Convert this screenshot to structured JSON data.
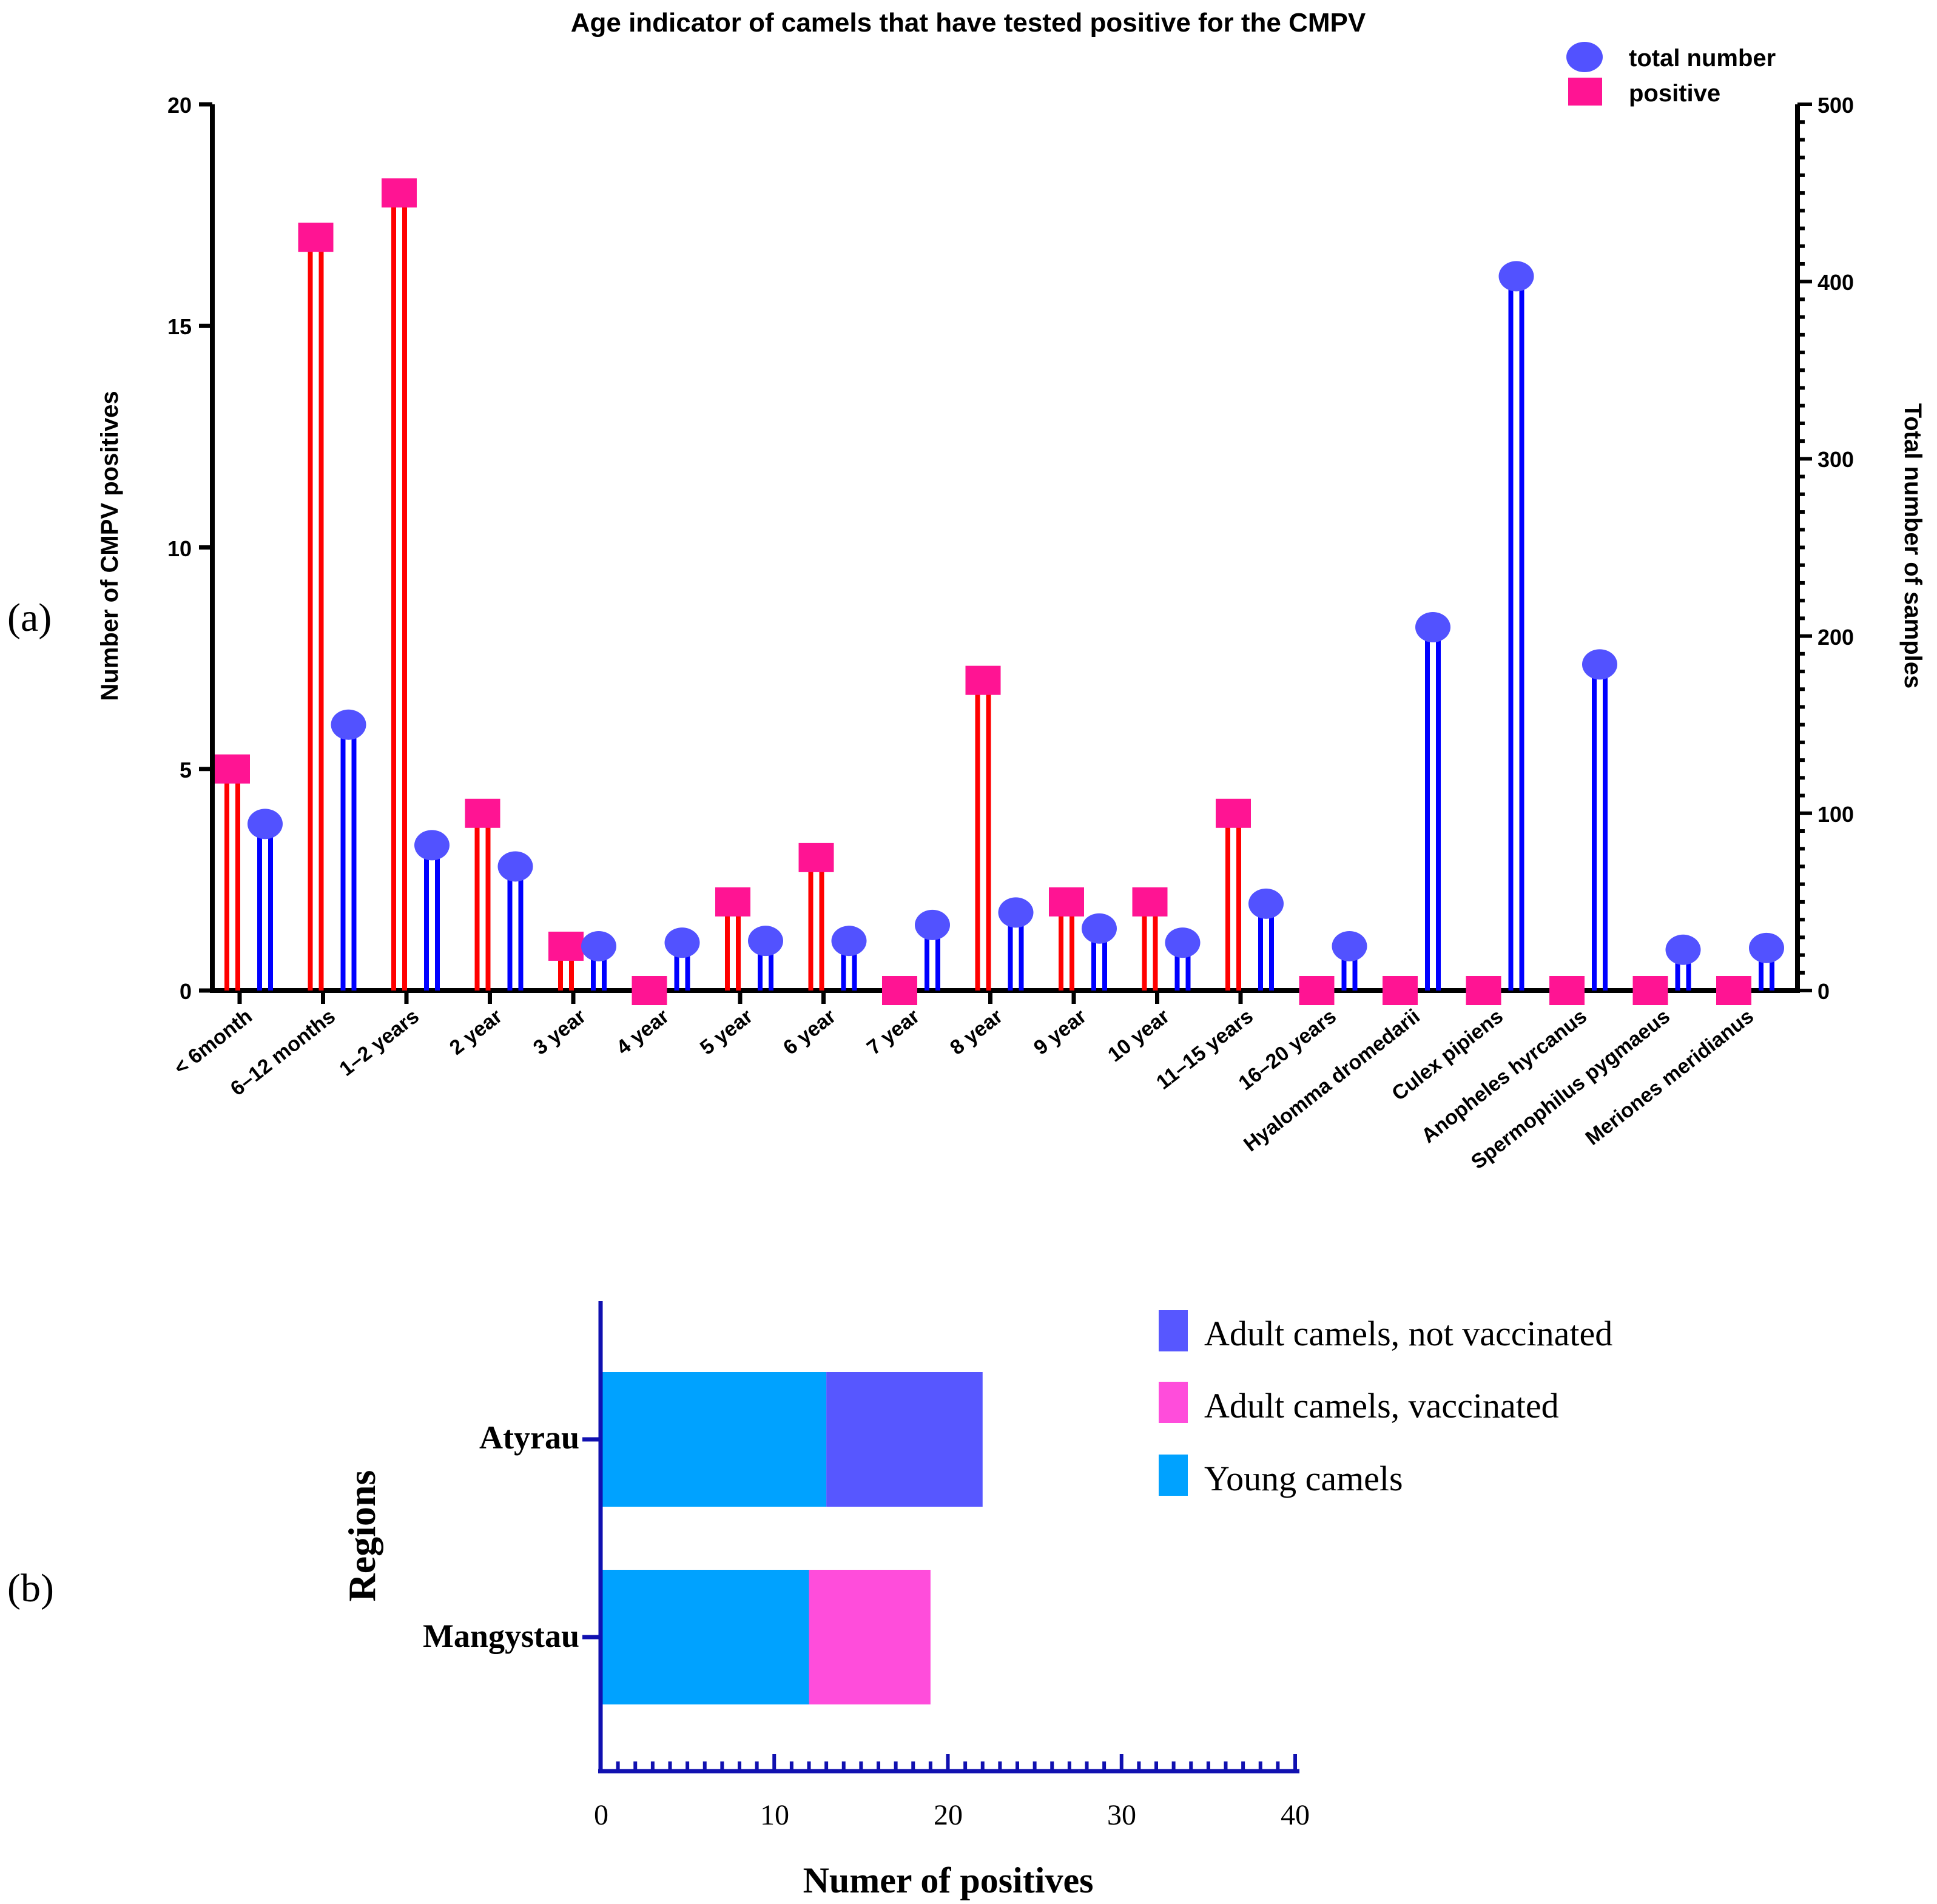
{
  "panel_labels": {
    "a": "(a)",
    "b": "(b)"
  },
  "chart_data": [
    {
      "type": "bar",
      "variant": "lollipop-dual-axis",
      "title": "Age indicator of camels that have tested positive for the CMPV",
      "xlabel": "",
      "ylabel": "Number of CMPV positives",
      "y2label": "Total number of samples",
      "ylim": [
        0,
        20
      ],
      "y2lim": [
        0,
        500
      ],
      "yticks": [
        0,
        5,
        10,
        15,
        20
      ],
      "y2ticks": [
        0,
        100,
        200,
        300,
        400,
        500
      ],
      "grid": false,
      "legend_position": "top-right",
      "categories": [
        "< 6month",
        "6–12 months",
        "1–2 years",
        "2 year",
        "3 year",
        "4 year",
        "5 year",
        "6 year",
        "7 year",
        "8 year",
        "9 year",
        "10 year",
        "11–15 years",
        "16–20 years",
        "Hyalomma dromedarii",
        "Culex pipiens",
        "Anopheles hyrcanus",
        "Spermophilus pygmaeus",
        "Meriones meridianus"
      ],
      "series": [
        {
          "name": "positive",
          "axis": "left",
          "color": "#ff0000",
          "marker_color": "#ff1493",
          "marker": "square",
          "values": [
            5,
            17,
            18,
            4,
            1,
            0,
            2,
            3,
            0,
            7,
            2,
            2,
            4,
            0,
            0,
            0,
            0,
            0,
            0
          ]
        },
        {
          "name": "total number",
          "axis": "right",
          "color": "#0000ff",
          "marker_color": "#5252ff",
          "marker": "circle",
          "values": [
            94,
            150,
            82,
            70,
            25,
            27,
            28,
            28,
            37,
            44,
            35,
            27,
            49,
            25,
            205,
            403,
            184,
            23,
            24
          ]
        }
      ]
    },
    {
      "type": "bar",
      "variant": "horizontal-stacked",
      "title": "",
      "xlabel": "Numer of positives",
      "ylabel": "Regions",
      "xlim": [
        0,
        40
      ],
      "xticks": [
        0,
        10,
        20,
        30,
        40
      ],
      "grid": false,
      "legend_position": "top-right",
      "categories": [
        "Atyrau",
        "Mangystau"
      ],
      "series": [
        {
          "name": "Young camels",
          "color": "#00a2ff",
          "values": [
            13,
            12
          ]
        },
        {
          "name": "Adult camels, vaccinated",
          "color": "#ff4ddb",
          "values": [
            0,
            7
          ]
        },
        {
          "name": "Adult camels, not vaccinated",
          "color": "#5757ff",
          "values": [
            9,
            0
          ]
        }
      ],
      "legend_order": [
        "Adult camels, not vaccinated",
        "Adult camels, vaccinated",
        "Young camels"
      ]
    }
  ]
}
